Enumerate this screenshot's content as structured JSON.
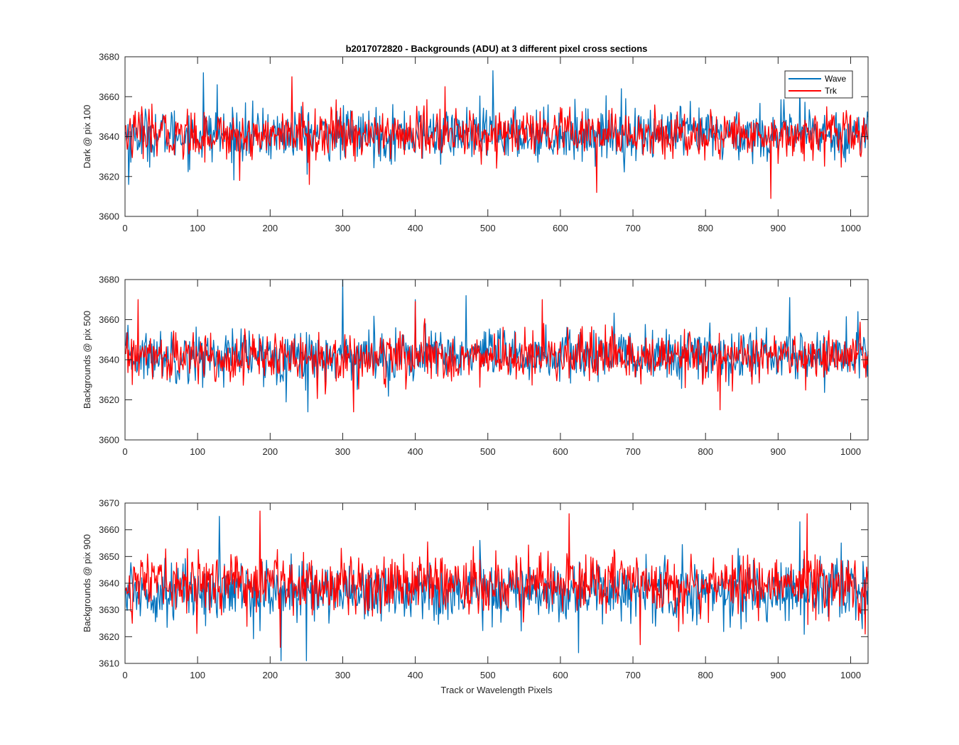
{
  "chart_data": [
    {
      "type": "line",
      "title": "b2017072820 - Backgrounds (ADU) at 3 different pixel cross sections",
      "ylabel": "Dark @ pix 100",
      "xlabel": "",
      "xlim": [
        0,
        1024
      ],
      "ylim": [
        3600,
        3680
      ],
      "xticks": [
        0,
        100,
        200,
        300,
        400,
        500,
        600,
        700,
        800,
        900,
        1000
      ],
      "yticks": [
        3600,
        3620,
        3640,
        3660,
        3680
      ],
      "legend": {
        "placement": "top-right",
        "entries": [
          "Wave",
          "Trk"
        ]
      },
      "series": [
        {
          "name": "Wave",
          "color": "#0072BD",
          "mean": 3641,
          "spread": 6.5,
          "features": [
            [
              5,
              3616
            ],
            [
              108,
              3672
            ],
            [
              127,
              3666
            ],
            [
              507,
              3673
            ],
            [
              684,
              3664
            ],
            [
              930,
              3665
            ]
          ]
        },
        {
          "name": "Trk",
          "color": "#FF0000",
          "mean": 3641,
          "spread": 6,
          "features": [
            [
              158,
              3618
            ],
            [
              230,
              3670
            ],
            [
              254,
              3616
            ],
            [
              650,
              3612
            ],
            [
              890,
              3609
            ],
            [
              441,
              3665
            ]
          ]
        }
      ]
    },
    {
      "type": "line",
      "title": "",
      "ylabel": "Backgrounds @ pix 500",
      "xlabel": "",
      "xlim": [
        0,
        1024
      ],
      "ylim": [
        3600,
        3680
      ],
      "xticks": [
        0,
        100,
        200,
        300,
        400,
        500,
        600,
        700,
        800,
        900,
        1000
      ],
      "yticks": [
        3600,
        3620,
        3640,
        3660,
        3680
      ],
      "series": [
        {
          "name": "Wave",
          "color": "#0072BD",
          "mean": 3642,
          "spread": 6.5,
          "features": [
            [
              300,
              3680
            ],
            [
              252,
              3614
            ],
            [
              400,
              3670
            ],
            [
              470,
              3672
            ],
            [
              916,
              3671
            ],
            [
              1010,
              3664
            ]
          ]
        },
        {
          "name": "Trk",
          "color": "#FF0000",
          "mean": 3641,
          "spread": 6,
          "features": [
            [
              18,
              3670
            ],
            [
              315,
              3614
            ],
            [
              400,
              3669
            ],
            [
              820,
              3615
            ],
            [
              575,
              3670
            ]
          ]
        }
      ]
    },
    {
      "type": "line",
      "title": "",
      "ylabel": "Backgrounds @ pix 900",
      "xlabel": "Track or Wavelength Pixels",
      "xlim": [
        0,
        1024
      ],
      "ylim": [
        3610,
        3670
      ],
      "xticks": [
        0,
        100,
        200,
        300,
        400,
        500,
        600,
        700,
        800,
        900,
        1000
      ],
      "yticks": [
        3610,
        3620,
        3630,
        3640,
        3650,
        3660,
        3670
      ],
      "series": [
        {
          "name": "Wave",
          "color": "#0072BD",
          "mean": 3637,
          "spread": 5.5,
          "features": [
            [
              130,
              3665
            ],
            [
              215,
              3611
            ],
            [
              250,
              3611
            ],
            [
              625,
              3614
            ],
            [
              930,
              3663
            ]
          ]
        },
        {
          "name": "Trk",
          "color": "#FF0000",
          "mean": 3640,
          "spread": 5.5,
          "features": [
            [
              186,
              3667
            ],
            [
              612,
              3666
            ],
            [
              940,
              3666
            ],
            [
              214,
              3616
            ],
            [
              710,
              3617
            ],
            [
              1020,
              3621
            ]
          ]
        }
      ]
    }
  ]
}
